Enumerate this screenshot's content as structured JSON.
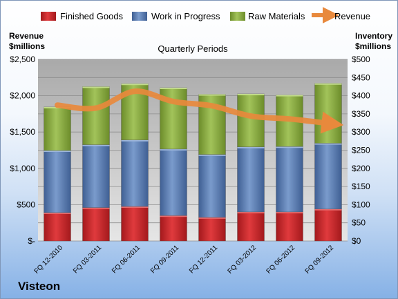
{
  "company": "Visteon",
  "chart_data": {
    "type": "bar",
    "stacked": true,
    "title": "Quarterly Periods",
    "ylabel_left": [
      "Revenue",
      "$millions"
    ],
    "ylabel_right": [
      "Inventory",
      "$millions"
    ],
    "categories": [
      "FQ 12-2010",
      "FQ 03-2011",
      "FQ 06-2011",
      "FQ 09-2011",
      "FQ 12-2011",
      "FQ 03-2012",
      "FQ 06-2012",
      "FQ 09-2012"
    ],
    "series": [
      {
        "name": "Finished Goods",
        "color": "#c0282b",
        "axis": "right",
        "values": [
          78,
          92,
          95,
          70,
          65,
          80,
          80,
          88
        ]
      },
      {
        "name": "Work in Progress",
        "color": "#4f73ab",
        "axis": "right",
        "values": [
          171,
          173,
          183,
          183,
          173,
          179,
          180,
          181
        ]
      },
      {
        "name": "Raw Materials",
        "color": "#86aa3a",
        "axis": "right",
        "values": [
          120,
          160,
          155,
          169,
          166,
          146,
          142,
          165
        ]
      },
      {
        "name": "Revenue",
        "color": "#e8893c",
        "axis": "left",
        "type": "line",
        "values": [
          1870,
          1830,
          2060,
          1920,
          1860,
          1720,
          1680,
          1620
        ]
      }
    ],
    "left_axis": {
      "ticks": [
        "$-",
        "$500",
        "$1,000",
        "$1,500",
        "$2,000",
        "$2,500"
      ],
      "ylim": [
        0,
        2500
      ]
    },
    "right_axis": {
      "ticks": [
        "$0",
        "$50",
        "$100",
        "$150",
        "$200",
        "$250",
        "$300",
        "$350",
        "$400",
        "$450",
        "$500"
      ],
      "ylim": [
        0,
        500
      ]
    },
    "legend_position": "top",
    "grid": true
  }
}
